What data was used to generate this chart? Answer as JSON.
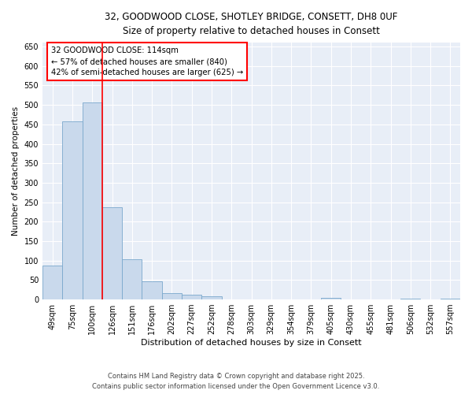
{
  "title_line1": "32, GOODWOOD CLOSE, SHOTLEY BRIDGE, CONSETT, DH8 0UF",
  "title_line2": "Size of property relative to detached houses in Consett",
  "xlabel": "Distribution of detached houses by size in Consett",
  "ylabel": "Number of detached properties",
  "categories": [
    "49sqm",
    "75sqm",
    "100sqm",
    "126sqm",
    "151sqm",
    "176sqm",
    "202sqm",
    "227sqm",
    "252sqm",
    "278sqm",
    "303sqm",
    "329sqm",
    "354sqm",
    "379sqm",
    "405sqm",
    "430sqm",
    "455sqm",
    "481sqm",
    "506sqm",
    "532sqm",
    "557sqm"
  ],
  "values": [
    88,
    458,
    507,
    238,
    104,
    47,
    17,
    12,
    8,
    1,
    0,
    0,
    0,
    0,
    4,
    0,
    0,
    0,
    2,
    0,
    3
  ],
  "bar_color": "#c9d9ec",
  "bar_edge_color": "#7aa8cc",
  "red_line_x": 2.5,
  "annotation_line1": "32 GOODWOOD CLOSE: 114sqm",
  "annotation_line2": "← 57% of detached houses are smaller (840)",
  "annotation_line3": "42% of semi-detached houses are larger (625) →",
  "ylim": [
    0,
    660
  ],
  "yticks": [
    0,
    50,
    100,
    150,
    200,
    250,
    300,
    350,
    400,
    450,
    500,
    550,
    600,
    650
  ],
  "background_color": "#e8eef7",
  "grid_color": "#ffffff",
  "footer_line1": "Contains HM Land Registry data © Crown copyright and database right 2025.",
  "footer_line2": "Contains public sector information licensed under the Open Government Licence v3.0."
}
